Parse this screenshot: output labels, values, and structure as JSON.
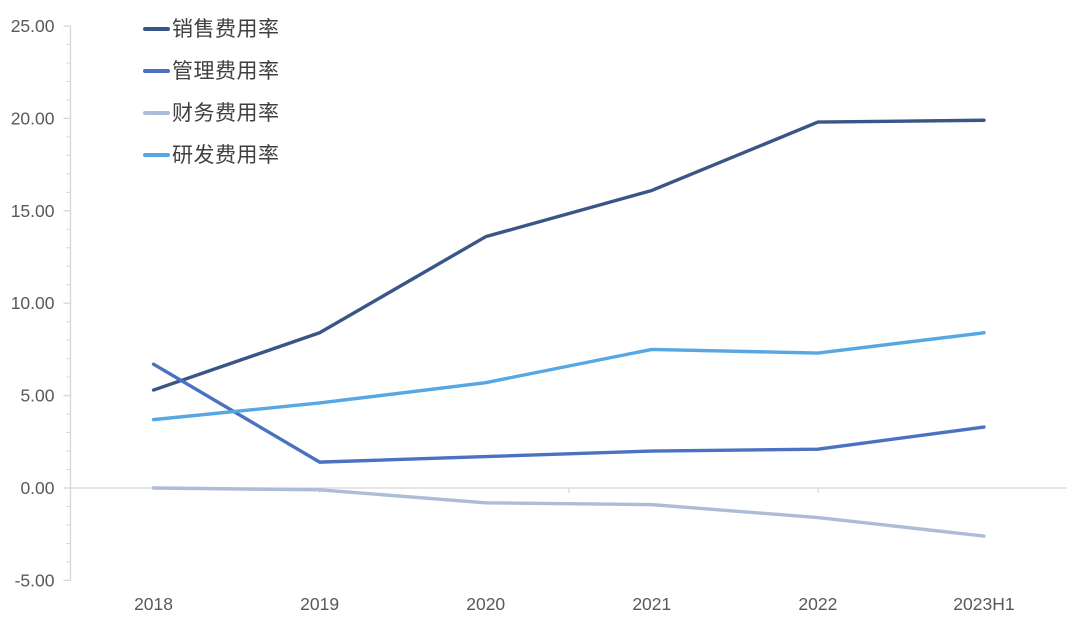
{
  "chart_data": {
    "type": "line",
    "categories": [
      "2018",
      "2019",
      "2020",
      "2021",
      "2022",
      "2023H1"
    ],
    "series": [
      {
        "name": "销售费用率",
        "color": "#3A5687",
        "values": [
          5.3,
          8.4,
          13.6,
          16.1,
          19.8,
          19.9
        ]
      },
      {
        "name": "管理费用率",
        "color": "#4A72C0",
        "values": [
          6.7,
          1.4,
          1.7,
          2.0,
          2.1,
          3.3
        ]
      },
      {
        "name": "财务费用率",
        "color": "#AEBBD9",
        "values": [
          0.0,
          -0.1,
          -0.8,
          -0.9,
          -1.6,
          -2.6
        ]
      },
      {
        "name": "研发费用率",
        "color": "#56A7E3",
        "values": [
          3.7,
          4.6,
          5.7,
          7.5,
          7.3,
          8.4
        ]
      }
    ],
    "ylim": [
      -5,
      25
    ],
    "y_major_unit": 5,
    "y_minor_unit": 1,
    "y_tick_labels": [
      "25.00",
      "20.00",
      "15.00",
      "10.00",
      "5.00",
      "0.00",
      "-5.00"
    ],
    "legend_position": "top-left",
    "grid": false,
    "axis_color": "#D6D6D6",
    "label_color": "#595959"
  }
}
